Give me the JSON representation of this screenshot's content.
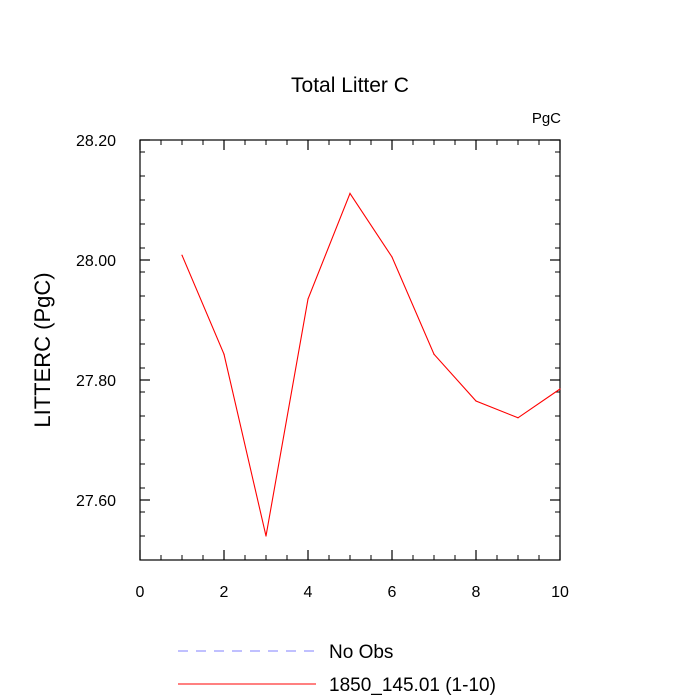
{
  "chart_data": {
    "type": "line",
    "title": "Total Litter C",
    "units_label": "PgC",
    "ylabel": "LITTERC  (PgC)",
    "xlim": [
      0,
      10
    ],
    "ylim": [
      27.5,
      28.2
    ],
    "x_ticks": [
      0,
      2,
      4,
      6,
      8,
      10
    ],
    "y_ticks": [
      27.6,
      27.8,
      28.0,
      28.2
    ],
    "y_tick_labels": [
      "27.60",
      "27.80",
      "28.00",
      "28.20"
    ],
    "grid": false,
    "legend_position": "bottom",
    "series": [
      {
        "name": "1850_145.01 (1-10)",
        "color": "#ff0000",
        "style": "solid",
        "x": [
          1,
          2,
          3,
          4,
          5,
          6,
          7,
          8,
          9,
          10
        ],
        "y": [
          28.008,
          27.843,
          27.54,
          27.935,
          28.111,
          28.005,
          27.843,
          27.765,
          27.737,
          27.785
        ]
      }
    ],
    "legend": [
      {
        "label": "No Obs",
        "color": "#8080ff",
        "style": "dashed"
      },
      {
        "label": "1850_145.01 (1-10)",
        "color": "#ff0000",
        "style": "solid"
      }
    ]
  }
}
